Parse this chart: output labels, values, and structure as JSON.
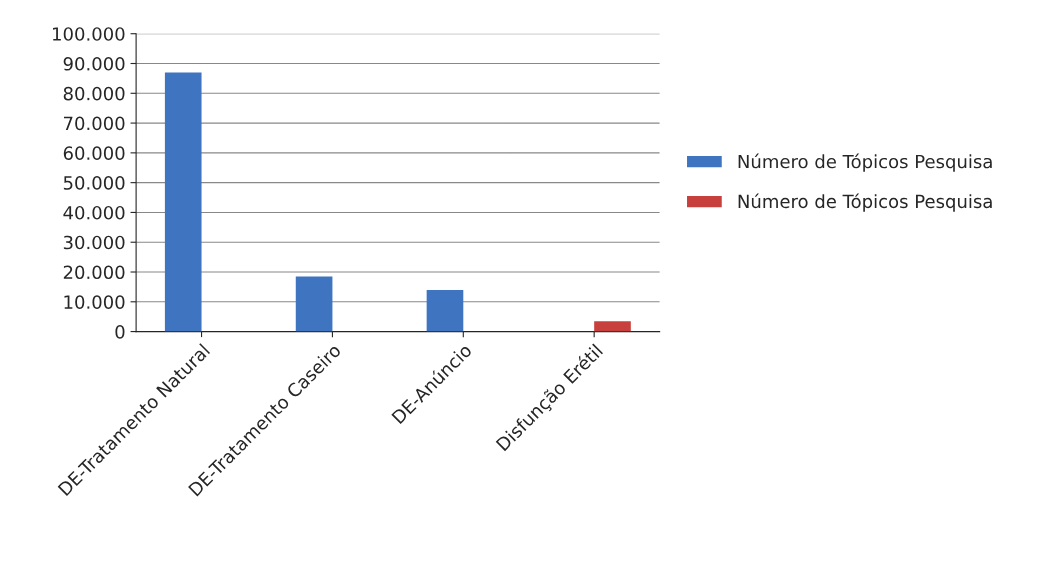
{
  "chart_data": {
    "type": "bar",
    "categories": [
      "DE-Tratamento Natural",
      "DE-Tratamento Caseiro",
      "DE-Anúncio",
      "Disfunção Erétil"
    ],
    "series": [
      {
        "name": "Número de Tópicos Pesquisa",
        "color": "#3f74c0",
        "values": [
          87000,
          18500,
          14000,
          null
        ]
      },
      {
        "name": "Número de Tópicos Pesquisa",
        "color": "#c8403d",
        "values": [
          null,
          null,
          null,
          3500
        ]
      }
    ],
    "ylim": [
      0,
      100000
    ],
    "yticks": [
      {
        "value": 0,
        "label": "0"
      },
      {
        "value": 10000,
        "label": "10.000"
      },
      {
        "value": 20000,
        "label": "20.000"
      },
      {
        "value": 30000,
        "label": "30.000"
      },
      {
        "value": 40000,
        "label": "40.000"
      },
      {
        "value": 50000,
        "label": "50.000"
      },
      {
        "value": 60000,
        "label": "60.000"
      },
      {
        "value": 70000,
        "label": "70.000"
      },
      {
        "value": 80000,
        "label": "80.000"
      },
      {
        "value": 90000,
        "label": "90.000"
      },
      {
        "value": 100000,
        "label": "100.000"
      }
    ],
    "grid": "y",
    "legend": "right"
  }
}
